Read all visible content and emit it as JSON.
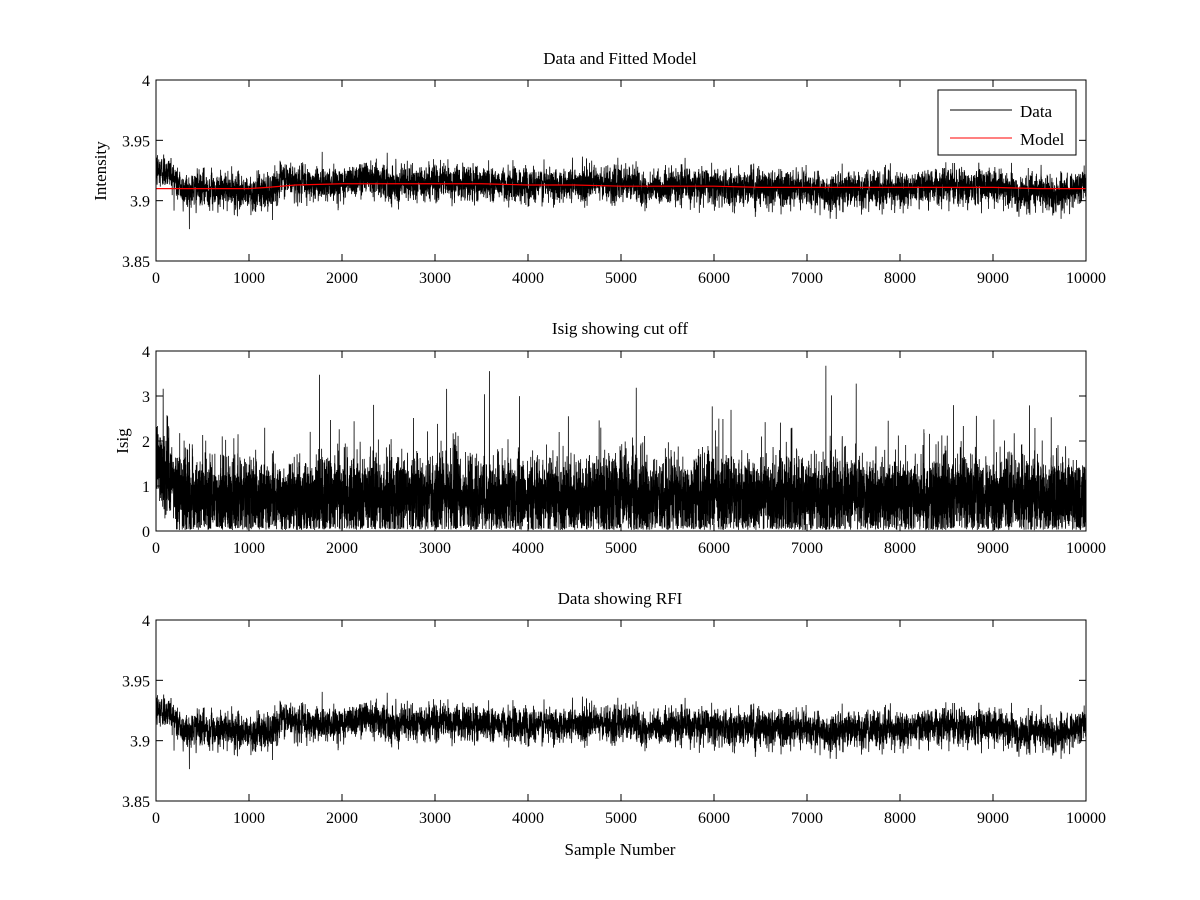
{
  "chart_data": [
    {
      "type": "line",
      "title": "Data and Fitted Model",
      "xlabel": "",
      "ylabel": "Intensity",
      "xlim": [
        0,
        10000
      ],
      "ylim": [
        3.85,
        4
      ],
      "xticks": [
        0,
        1000,
        2000,
        3000,
        4000,
        5000,
        6000,
        7000,
        8000,
        9000,
        10000
      ],
      "xtick_labels": [
        "0",
        "1000",
        "2000",
        "3000",
        "4000",
        "5000",
        "6000",
        "7000",
        "8000",
        "9000",
        "10000"
      ],
      "yticks": [
        3.85,
        3.9,
        3.95,
        4
      ],
      "ytick_labels": [
        "3.85",
        "3.9",
        "3.95",
        "4"
      ],
      "grid": false,
      "legend": {
        "position": "top-right",
        "entries": [
          "Data",
          "Model"
        ]
      },
      "series": [
        {
          "name": "Data",
          "color": "#000000",
          "style": "noise",
          "n_points": 10000,
          "noise_std": 0.0065,
          "baseline_x": [
            0,
            150,
            250,
            300,
            500,
            800,
            1000,
            1200,
            1400,
            1600,
            1800,
            2000,
            2300,
            2500,
            2800,
            3000,
            3500,
            4000,
            4500,
            5000,
            5100,
            5300,
            5600,
            6000,
            6500,
            7000,
            7200,
            7500,
            7800,
            8000,
            8300,
            8700,
            9000,
            9300,
            9600,
            9700,
            10000
          ],
          "baseline_y": [
            3.925,
            3.924,
            3.912,
            3.908,
            3.91,
            3.908,
            3.906,
            3.908,
            3.918,
            3.913,
            3.915,
            3.914,
            3.921,
            3.915,
            3.914,
            3.916,
            3.914,
            3.913,
            3.914,
            3.914,
            3.916,
            3.908,
            3.913,
            3.911,
            3.911,
            3.911,
            3.906,
            3.91,
            3.908,
            3.909,
            3.912,
            3.913,
            3.912,
            3.906,
            3.908,
            3.905,
            3.915
          ]
        },
        {
          "name": "Model",
          "color": "#ff0000",
          "style": "smooth",
          "x": [
            0,
            500,
            1000,
            1200,
            1500,
            2000,
            2500,
            3000,
            3500,
            4000,
            4500,
            5000,
            5500,
            6000,
            6500,
            7000,
            7500,
            8000,
            8500,
            9000,
            9500,
            10000
          ],
          "y": [
            3.91,
            3.91,
            3.91,
            3.911,
            3.913,
            3.914,
            3.914,
            3.914,
            3.914,
            3.913,
            3.913,
            3.912,
            3.912,
            3.912,
            3.911,
            3.911,
            3.911,
            3.911,
            3.911,
            3.911,
            3.91,
            3.91
          ]
        }
      ]
    },
    {
      "type": "line",
      "title": "Isig showing cut off",
      "xlabel": "",
      "ylabel": "Isig",
      "xlim": [
        0,
        10000
      ],
      "ylim": [
        0,
        4
      ],
      "xticks": [
        0,
        1000,
        2000,
        3000,
        4000,
        5000,
        6000,
        7000,
        8000,
        9000,
        10000
      ],
      "xtick_labels": [
        "0",
        "1000",
        "2000",
        "3000",
        "4000",
        "5000",
        "6000",
        "7000",
        "8000",
        "9000",
        "10000"
      ],
      "yticks": [
        0,
        1,
        2,
        3,
        4
      ],
      "ytick_labels": [
        "0",
        "1",
        "2",
        "3",
        "4"
      ],
      "grid": false,
      "series": [
        {
          "name": "Isig",
          "color": "#000000",
          "style": "abs-noise",
          "n_points": 10000,
          "baseline_x": [
            0,
            300,
            10000
          ],
          "baseline_y": [
            1.6,
            0.75,
            0.75
          ],
          "noise_std": 0.45,
          "spike_max": 3.7
        }
      ]
    },
    {
      "type": "line",
      "title": "Data showing RFI",
      "xlabel": "Sample Number",
      "ylabel": "",
      "xlim": [
        0,
        10000
      ],
      "ylim": [
        3.85,
        4
      ],
      "xticks": [
        0,
        1000,
        2000,
        3000,
        4000,
        5000,
        6000,
        7000,
        8000,
        9000,
        10000
      ],
      "xtick_labels": [
        "0",
        "1000",
        "2000",
        "3000",
        "4000",
        "5000",
        "6000",
        "7000",
        "8000",
        "9000",
        "10000"
      ],
      "yticks": [
        3.85,
        3.9,
        3.95,
        4
      ],
      "ytick_labels": [
        "3.85",
        "3.9",
        "3.95",
        "4"
      ],
      "grid": false,
      "series": [
        {
          "name": "Data",
          "color": "#000000",
          "style": "noise",
          "n_points": 10000,
          "noise_std": 0.0065,
          "baseline_x": [
            0,
            150,
            250,
            300,
            500,
            800,
            1000,
            1200,
            1400,
            1600,
            1800,
            2000,
            2300,
            2500,
            2800,
            3000,
            3500,
            4000,
            4500,
            5000,
            5100,
            5300,
            5600,
            6000,
            6500,
            7000,
            7200,
            7500,
            7800,
            8000,
            8300,
            8700,
            9000,
            9300,
            9600,
            9700,
            10000
          ],
          "baseline_y": [
            3.925,
            3.924,
            3.912,
            3.908,
            3.91,
            3.908,
            3.906,
            3.908,
            3.918,
            3.913,
            3.915,
            3.914,
            3.921,
            3.915,
            3.914,
            3.916,
            3.914,
            3.913,
            3.914,
            3.914,
            3.916,
            3.908,
            3.913,
            3.911,
            3.911,
            3.911,
            3.906,
            3.91,
            3.908,
            3.909,
            3.912,
            3.913,
            3.912,
            3.906,
            3.908,
            3.905,
            3.915
          ]
        }
      ]
    }
  ]
}
